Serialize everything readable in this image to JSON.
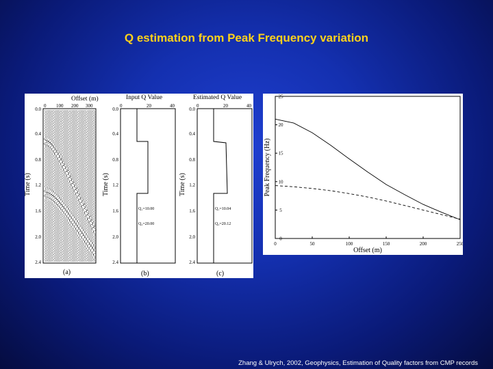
{
  "slide": {
    "title": "Q estimation from Peak Frequency variation",
    "citation": "Zhang & Ulrych, 2002, Geophysics, Estimation of Quality factors from CMP records"
  },
  "left_figure": {
    "panel_a": {
      "title": "Offset (m)",
      "xticks": [
        "0",
        "100",
        "200",
        "300"
      ],
      "ylabel": "Time (s)",
      "yticks": [
        "0.0",
        "0.4",
        "0.8",
        "1.2",
        "1.6",
        "2.0",
        "2.4"
      ],
      "caption": "(a)"
    },
    "panel_b": {
      "title": "Input Q Value",
      "xticks": [
        "0",
        "20",
        "40"
      ],
      "ylabel": "Time (s)",
      "yticks": [
        "0.0",
        "0.4",
        "0.8",
        "1.2",
        "1.6",
        "2.0",
        "2.4"
      ],
      "q1": "Q₁=10.00",
      "q2": "Q₂=20.00",
      "caption": "(b)"
    },
    "panel_c": {
      "title": "Estimated Q Value",
      "xticks": [
        "0",
        "20",
        "40"
      ],
      "ylabel": "Time (s)",
      "yticks": [
        "0.0",
        "0.4",
        "0.8",
        "1.2",
        "1.6",
        "2.0",
        "2.4"
      ],
      "q1": "Q₁=10.04",
      "q2": "Q₂=20.12",
      "caption": "(c)"
    }
  },
  "chart_data": {
    "type": "line",
    "xlabel": "Offset (m)",
    "ylabel": "Peak Frequency (Hz)",
    "xlim": [
      0,
      250
    ],
    "ylim": [
      0,
      25
    ],
    "xticks": [
      "0",
      "50",
      "100",
      "150",
      "200",
      "250"
    ],
    "yticks": [
      "0",
      "5",
      "10",
      "15",
      "20",
      "25"
    ],
    "series": [
      {
        "style": "solid",
        "x": [
          0,
          25,
          50,
          75,
          100,
          125,
          150,
          175,
          200,
          225,
          250
        ],
        "y": [
          21.0,
          20.3,
          18.6,
          16.4,
          14.0,
          11.7,
          9.5,
          7.7,
          6.0,
          4.6,
          3.3
        ]
      },
      {
        "style": "dashed",
        "x": [
          0,
          25,
          50,
          75,
          100,
          125,
          150,
          175,
          200,
          225,
          250
        ],
        "y": [
          9.3,
          9.1,
          8.8,
          8.4,
          7.9,
          7.3,
          6.6,
          5.8,
          5.0,
          4.2,
          3.4
        ]
      }
    ]
  }
}
